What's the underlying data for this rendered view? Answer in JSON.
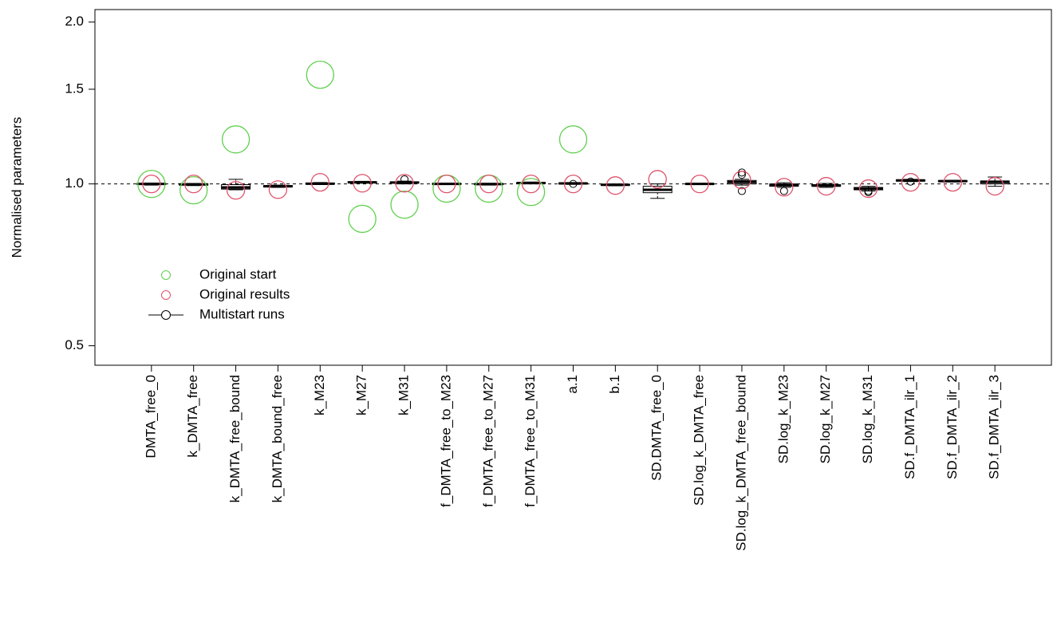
{
  "chart_data": {
    "type": "box",
    "y_label": "Normalised parameters",
    "log_y": true,
    "ylim": [
      0.46,
      2.11
    ],
    "yticks": [
      0.5,
      {
        "value": 1,
        "label": "1.0"
      },
      1.5,
      {
        "value": 2,
        "label": "2.0"
      }
    ],
    "reference_line": 1,
    "legend": "bottom-left",
    "categories": [
      "DMTA_free_0",
      "k_DMTA_free",
      "k_DMTA_free_bound",
      "k_DMTA_bound_free",
      "k_M23",
      "k_M27",
      "k_M31",
      "f_DMTA_free_to_M23",
      "f_DMTA_free_to_M27",
      "f_DMTA_free_to_M31",
      "a.1",
      "b.1",
      "SD.DMTA_free_0",
      "SD.log_k_DMTA_free",
      "SD.log_k_DMTA_free_bound",
      "SD.log_k_M23",
      "SD.log_k_M27",
      "SD.log_k_M31",
      "SD.f_DMTA_ilr_1",
      "SD.f_DMTA_ilr_2",
      "SD.f_DMTA_ilr_3"
    ],
    "series": [
      {
        "name": "Original start",
        "color": "#61D04F",
        "kind": "points",
        "values": [
          1.0,
          0.973,
          1.21,
          null,
          1.596,
          0.861,
          0.915,
          0.98,
          0.98,
          0.966,
          1.21,
          null,
          null,
          null,
          null,
          null,
          null,
          null,
          null,
          null,
          null
        ]
      },
      {
        "name": "Original results",
        "color": "#DF536B",
        "kind": "points",
        "values": [
          1.0,
          1.0,
          0.973,
          0.976,
          1.007,
          1.003,
          1.003,
          1.0,
          1.0,
          1.0,
          1.0,
          0.993,
          1.02,
          1.0,
          1.017,
          0.986,
          0.99,
          0.98,
          1.007,
          1.007,
          0.99
        ]
      },
      {
        "name": "Multistart runs",
        "color": "#000000",
        "kind": "boxes",
        "boxes": [
          [
            0.995,
            0.997,
            1.0,
            1.002,
            1.004
          ],
          [
            0.993,
            0.995,
            0.998,
            1.0,
            1.002
          ],
          [
            0.975,
            0.978,
            0.985,
            0.997,
            1.02
          ],
          [
            0.985,
            0.987,
            0.99,
            0.993,
            0.995
          ],
          [
            0.997,
            0.999,
            1.001,
            1.004,
            1.006
          ],
          [
            1.003,
            1.005,
            1.007,
            1.009,
            1.011
          ],
          [
            1.0,
            1.003,
            1.006,
            1.009,
            1.012
          ],
          [
            0.997,
            0.999,
            1.0,
            1.001,
            1.003
          ],
          [
            0.995,
            0.997,
            0.999,
            1.001,
            1.003
          ],
          [
            1.0,
            1.002,
            1.004,
            1.006,
            1.008
          ],
          [
            0.998,
            1.0,
            1.002,
            1.004,
            1.006
          ],
          [
            0.992,
            0.994,
            0.996,
            0.998,
            1.0
          ],
          [
            0.94,
            0.963,
            0.975,
            0.99,
            1.0
          ],
          [
            0.998,
            0.999,
            1.0,
            1.001,
            1.002
          ],
          [
            0.995,
            1.0,
            1.008,
            1.015,
            1.02
          ],
          [
            0.985,
            0.99,
            0.995,
            1.0,
            1.005
          ],
          [
            0.985,
            0.99,
            0.993,
            0.997,
            1.002
          ],
          [
            0.97,
            0.975,
            0.98,
            0.985,
            0.99
          ],
          [
            1.01,
            1.012,
            1.015,
            1.018,
            1.02
          ],
          [
            1.008,
            1.01,
            1.012,
            1.014,
            1.016
          ],
          [
            0.99,
            1.0,
            1.008,
            1.013,
            1.03
          ]
        ],
        "outliers": [
          [],
          [],
          [],
          [],
          [],
          [],
          [
            1.02
          ],
          [],
          [],
          [],
          [
            1.0
          ],
          [],
          [],
          [],
          [
            0.97,
            1.04,
            1.05
          ],
          [
            0.97
          ],
          [],
          [
            0.965,
            0.97
          ],
          [
            1.01
          ],
          [],
          []
        ]
      }
    ]
  }
}
